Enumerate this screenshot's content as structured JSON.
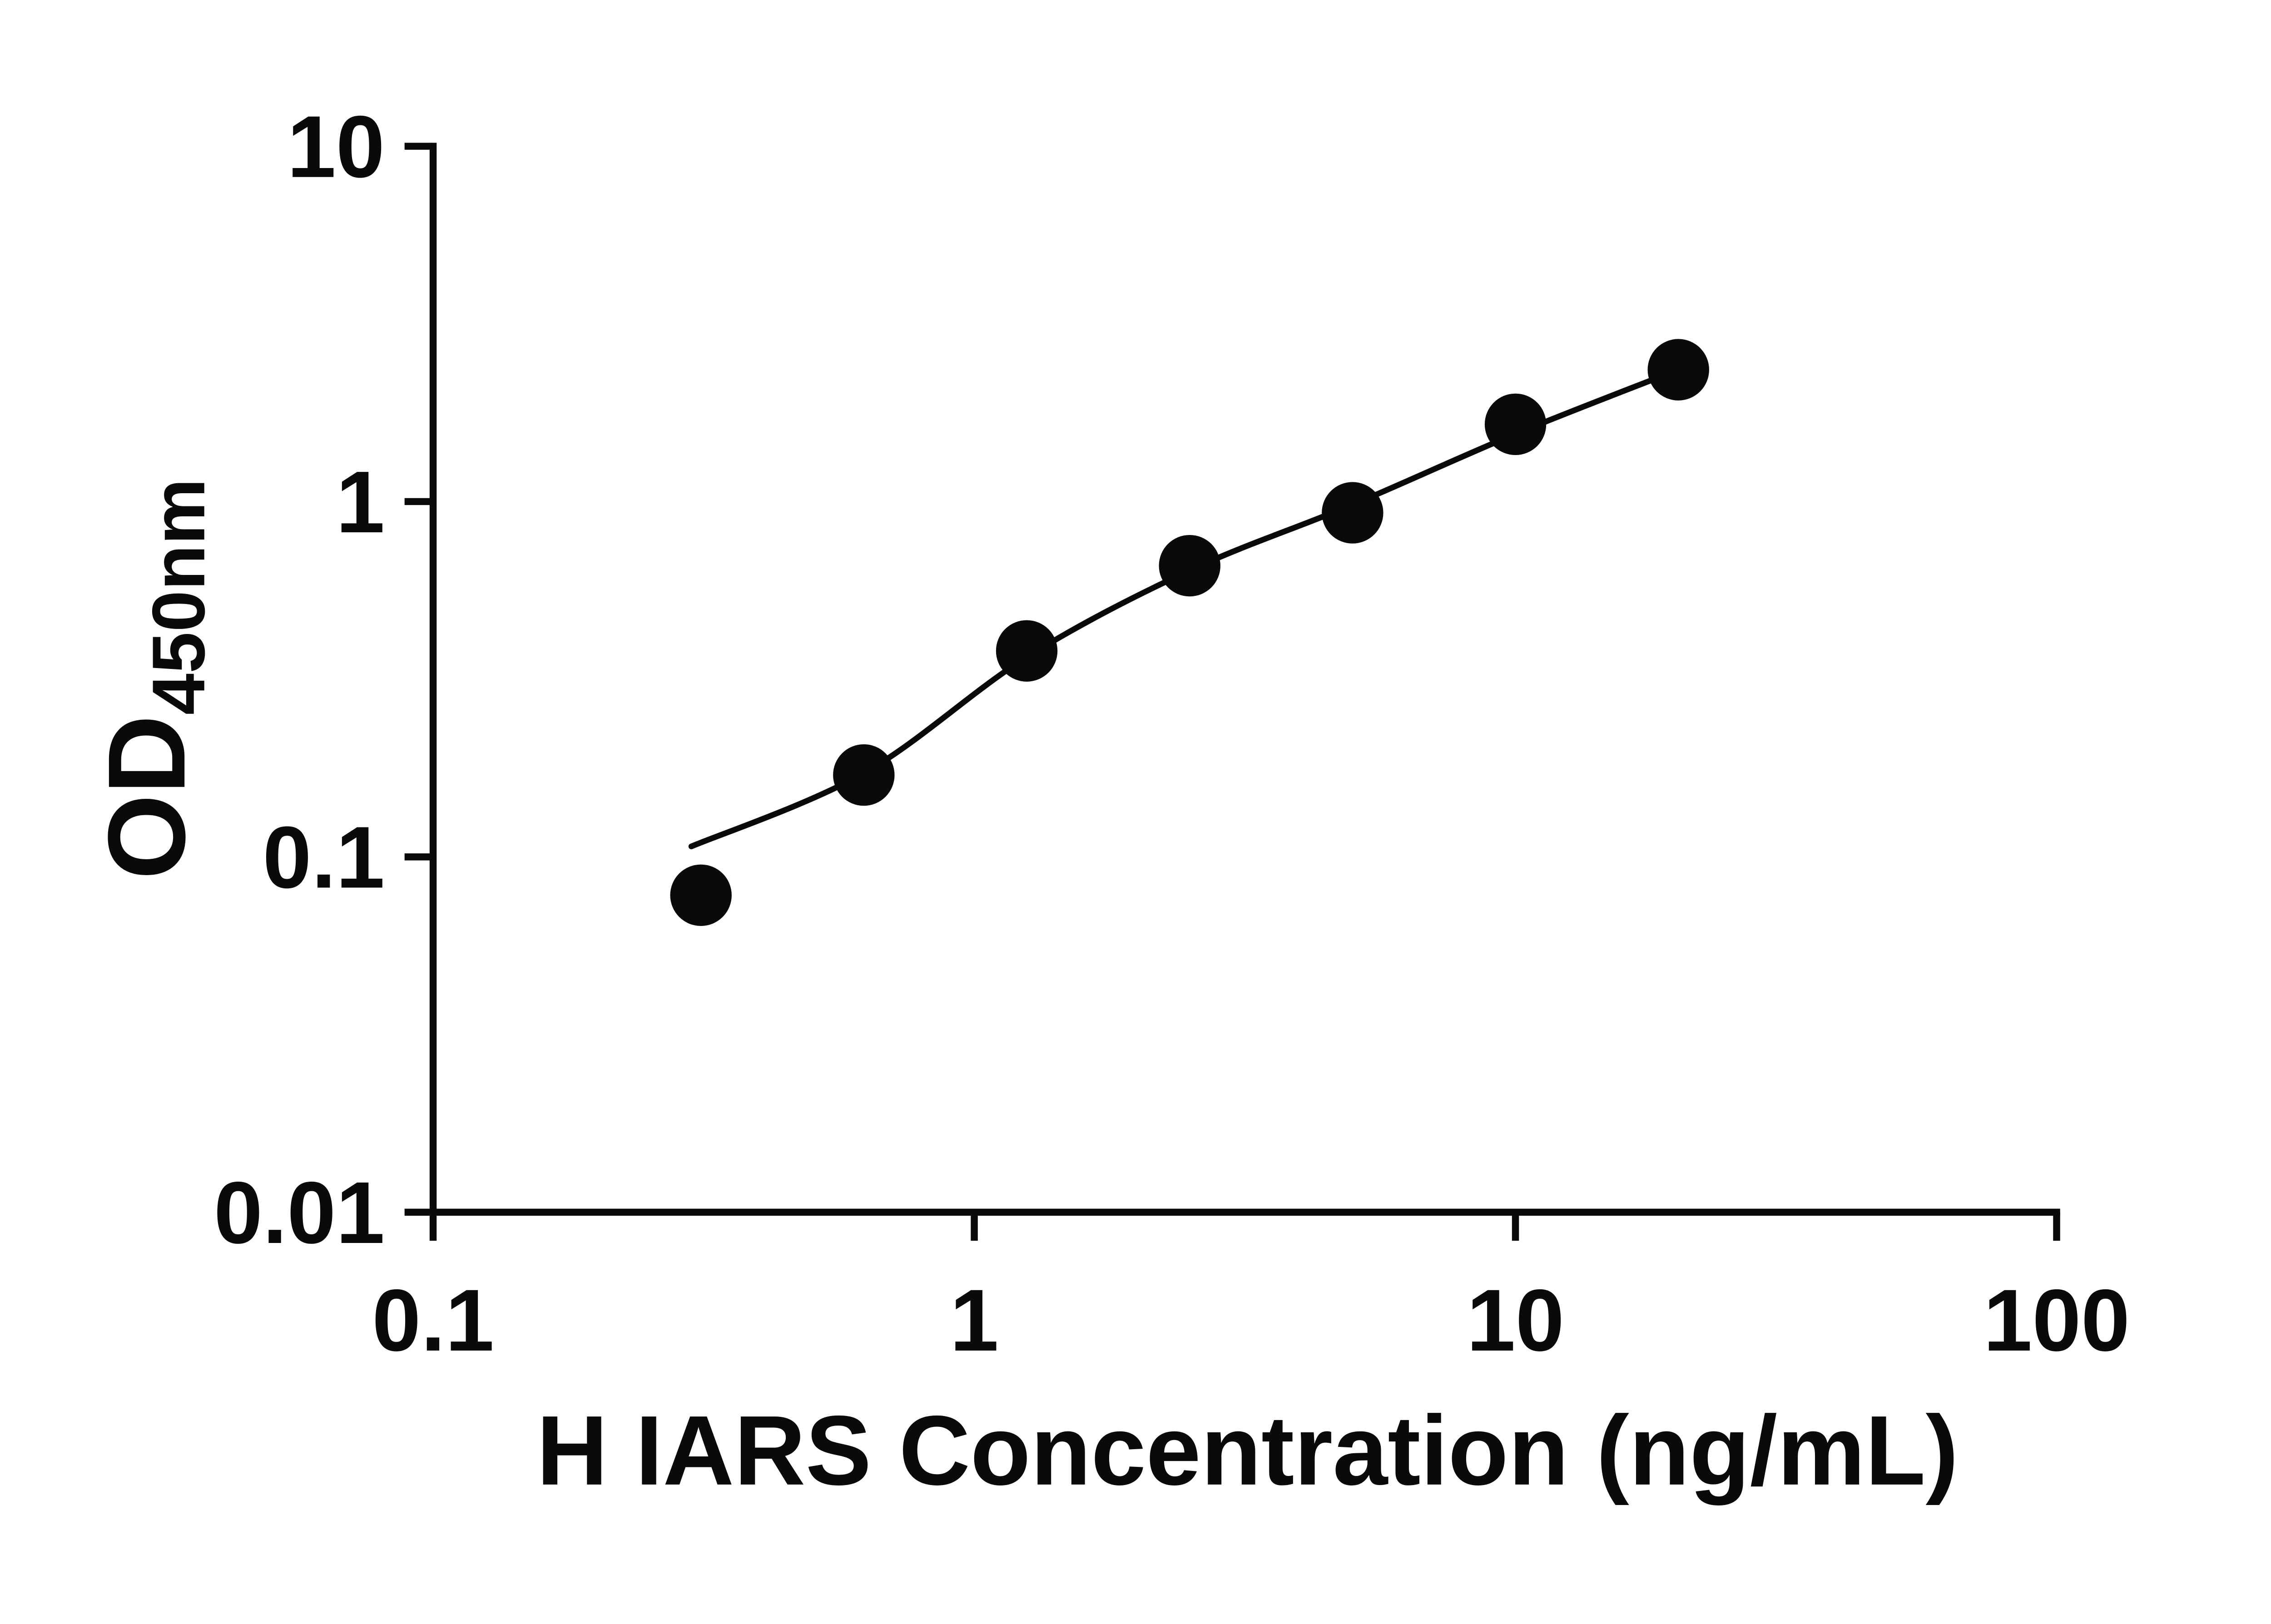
{
  "chart_data": {
    "type": "scatter",
    "title": "",
    "xlabel": "H IARS Concentration (ng/mL)",
    "ylabel_main": "OD",
    "ylabel_sub": "450nm",
    "x_scale": "log",
    "y_scale": "log",
    "xlim": [
      0.1,
      100
    ],
    "ylim": [
      0.01,
      10
    ],
    "grid": false,
    "legend": "none",
    "x_ticks": [
      {
        "value": 0.1,
        "label": "0.1"
      },
      {
        "value": 1,
        "label": "1"
      },
      {
        "value": 10,
        "label": "10"
      },
      {
        "value": 100,
        "label": "100"
      }
    ],
    "y_ticks": [
      {
        "value": 0.01,
        "label": "0.01"
      },
      {
        "value": 0.1,
        "label": "0.1"
      },
      {
        "value": 1,
        "label": "1"
      },
      {
        "value": 10,
        "label": "10"
      }
    ],
    "points": [
      {
        "x": 0.3125,
        "y": 0.078
      },
      {
        "x": 0.625,
        "y": 0.17
      },
      {
        "x": 1.25,
        "y": 0.38
      },
      {
        "x": 2.5,
        "y": 0.66
      },
      {
        "x": 5,
        "y": 0.93
      },
      {
        "x": 10,
        "y": 1.65
      },
      {
        "x": 20,
        "y": 2.35
      }
    ],
    "fit_curve": [
      {
        "x": 0.3,
        "y": 0.107
      },
      {
        "x": 0.625,
        "y": 0.172
      },
      {
        "x": 1.25,
        "y": 0.365
      },
      {
        "x": 2.5,
        "y": 0.64
      },
      {
        "x": 5,
        "y": 0.98
      },
      {
        "x": 10,
        "y": 1.55
      },
      {
        "x": 20,
        "y": 2.35
      }
    ],
    "colors": {
      "axis": "#0a0a0a",
      "marker": "#0a0a0a",
      "line": "#0a0a0a",
      "background": "#ffffff"
    }
  }
}
